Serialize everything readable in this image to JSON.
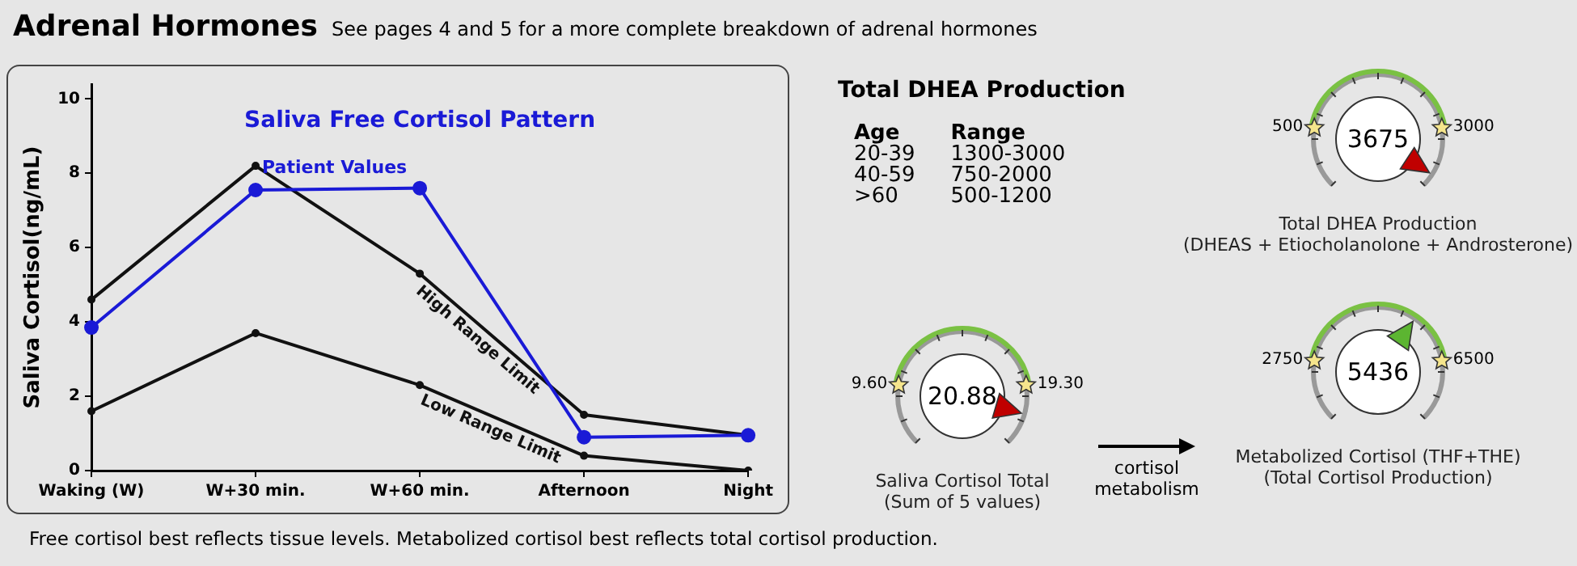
{
  "chart_data": [
    {
      "type": "other",
      "title": "Adrenal Hormones",
      "subtitle": "See pages 4 and 5 for a more complete breakdown of adrenal hormones",
      "annotations": [
        "Free cortisol best reflects tissue levels. Metabolized cortisol best reflects total cortisol production.",
        "cortisol metabolism"
      ]
    },
    {
      "type": "line",
      "title": "Saliva Free Cortisol Pattern",
      "ylabel": "Saliva Cortisol(ng/mL)",
      "categories": [
        "Waking (W)",
        "W+30 min.",
        "W+60 min.",
        "Afternoon",
        "Night"
      ],
      "ylim": [
        0,
        10.4
      ],
      "yticks": [
        0,
        2,
        4,
        6,
        8,
        10
      ],
      "marker": "circle",
      "legend": false,
      "series": [
        {
          "name": "Patient Values",
          "color": "#1a1ad6",
          "values": [
            3.85,
            7.55,
            7.6,
            0.9,
            0.95
          ]
        },
        {
          "name": "High Range Limit",
          "color": "#111111",
          "values": [
            4.6,
            8.2,
            5.3,
            1.5,
            0.95
          ]
        },
        {
          "name": "Low Range Limit",
          "color": "#111111",
          "values": [
            1.6,
            3.7,
            2.3,
            0.4,
            0
          ]
        }
      ]
    },
    {
      "type": "other",
      "title": "Total DHEA Production",
      "annotations": [
        "Age",
        "Range",
        "20-39",
        "1300-3000",
        "40-59",
        "750-2000",
        ">60",
        "500-1200"
      ]
    },
    {
      "type": "other",
      "title": "Total DHEA Production",
      "subtitle": "(DHEAS + Etiocholanolone + Androsterone)",
      "values": [
        3675
      ],
      "value_labels": [
        "3675"
      ],
      "annotations": [
        "500",
        "3000"
      ]
    },
    {
      "type": "other",
      "title": "Saliva Cortisol Total",
      "subtitle": "(Sum of 5 values)",
      "values": [
        20.88
      ],
      "value_labels": [
        "20.88"
      ],
      "annotations": [
        "9.60",
        "19.30"
      ]
    },
    {
      "type": "other",
      "title": "Metabolized Cortisol (THF+THE)",
      "subtitle": "(Total Cortisol Production)",
      "values": [
        5436
      ],
      "value_labels": [
        "5436"
      ],
      "annotations": [
        "2750",
        "6500"
      ]
    }
  ]
}
